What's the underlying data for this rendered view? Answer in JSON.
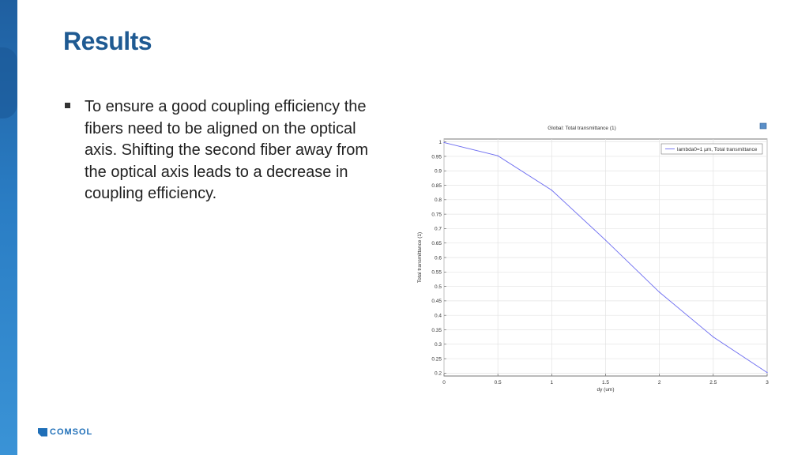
{
  "slide": {
    "title": "Results",
    "bullet": "To ensure a good coupling efficiency the fibers need to be aligned on the optical axis. Shifting the second fiber away from the optical axis leads to a decrease in coupling efficiency.",
    "logo_text": "COMSOL"
  },
  "colors": {
    "title": "#1f5a92",
    "band": "#2a7dc4",
    "series": "#6b6bf0",
    "logo": "#1f6fb8"
  },
  "chart_data": {
    "type": "line",
    "title": "Global: Total transmittance (1)",
    "xlabel": "dy (um)",
    "ylabel": "Total transmittance (1)",
    "xlim": [
      0,
      3
    ],
    "ylim": [
      0.19,
      1.01
    ],
    "x_ticks": [
      0,
      0.5,
      1,
      1.5,
      2,
      2.5,
      3
    ],
    "x_tick_labels": [
      "0",
      "0.5",
      "1",
      "1.5",
      "2",
      "2.5",
      "3"
    ],
    "y_ticks": [
      0.2,
      0.25,
      0.3,
      0.35,
      0.4,
      0.45,
      0.5,
      0.55,
      0.6,
      0.65,
      0.7,
      0.75,
      0.8,
      0.85,
      0.9,
      0.95,
      1
    ],
    "y_tick_labels": [
      "0.2",
      "0.25",
      "0.3",
      "0.35",
      "0.4",
      "0.45",
      "0.5",
      "0.55",
      "0.6",
      "0.65",
      "0.7",
      "0.75",
      "0.8",
      "0.85",
      "0.9",
      "0.95",
      "1"
    ],
    "grid": true,
    "legend_position": "top-right",
    "series": [
      {
        "name": "lambda0=1 µm, Total transmittance",
        "x": [
          0,
          0.5,
          1,
          1.5,
          2,
          2.5,
          3
        ],
        "y": [
          0.998,
          0.952,
          0.833,
          0.66,
          0.48,
          0.325,
          0.202
        ]
      }
    ]
  }
}
